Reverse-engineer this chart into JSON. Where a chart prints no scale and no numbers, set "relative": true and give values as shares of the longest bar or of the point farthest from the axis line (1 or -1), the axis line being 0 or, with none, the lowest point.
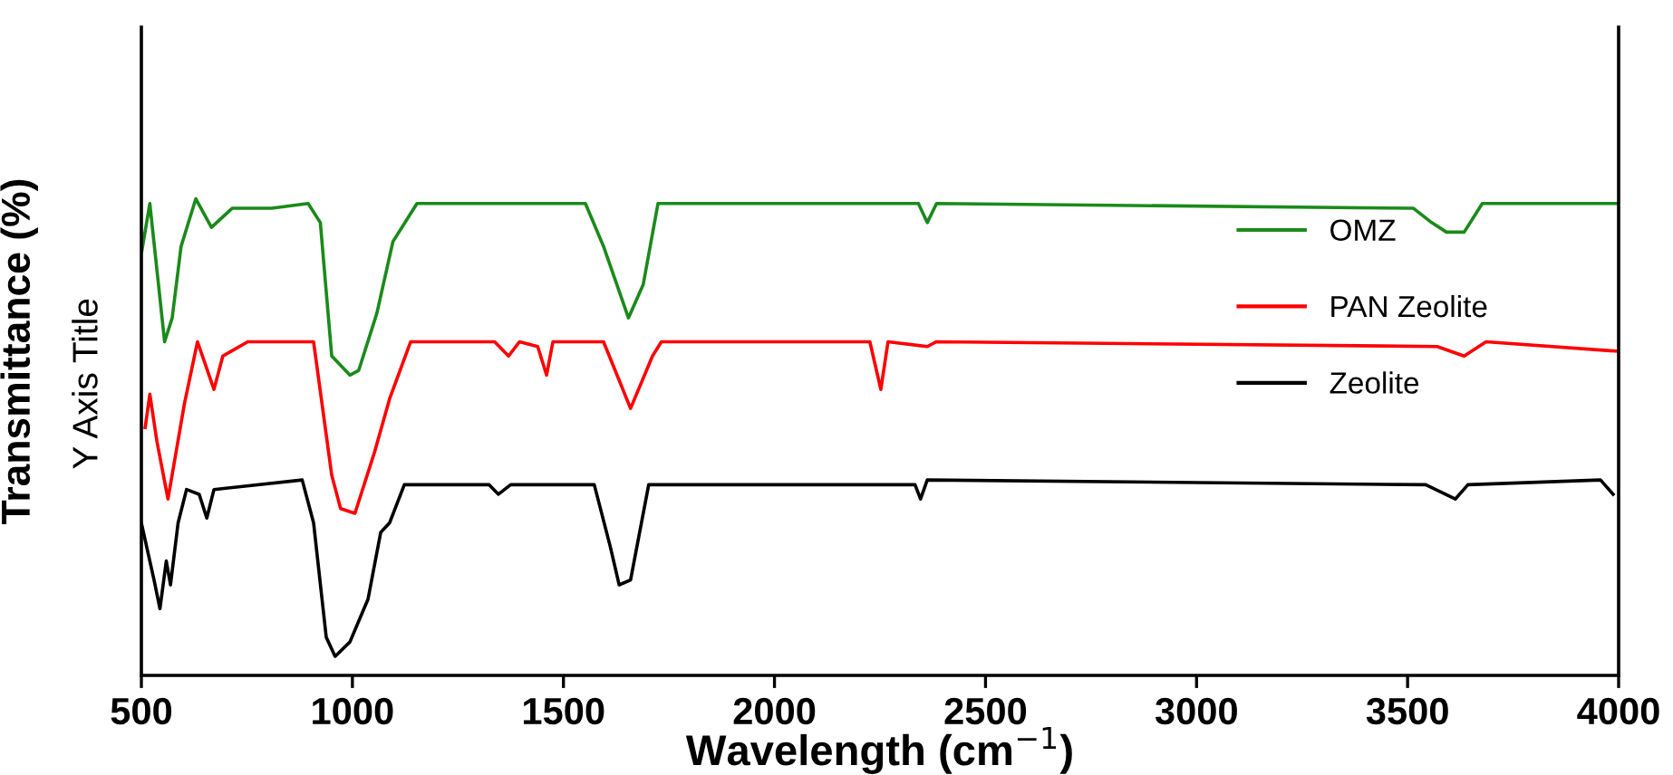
{
  "chart_data": {
    "type": "line",
    "relative": true,
    "xlabel": "Wavelength (cm$^{−1}$)",
    "ylabel": "Transmittance (%)",
    "annotations": [
      "Y Axis Title"
    ],
    "xlim": [
      500,
      4000
    ],
    "xticks": [
      500,
      1000,
      1500,
      2000,
      2500,
      3000,
      3500,
      4000
    ],
    "legend": "right",
    "grid": false,
    "series": [
      {
        "name": "OMZ",
        "color": "#1a8a1a",
        "x": [
          501,
          520,
          555,
          573,
          594,
          629,
          666,
          715,
          809,
          895,
          924,
          951,
          994,
          1015,
          1058,
          1096,
          1153,
          1552,
          1595,
          1654,
          1689,
          1724,
          2341,
          2362,
          2384,
          3514,
          3557,
          3592,
          3634,
          3677,
          4000
        ],
        "values": [
          0.89,
          0.99,
          0.7,
          0.75,
          0.9,
          1.0,
          0.94,
          0.98,
          0.98,
          0.99,
          0.95,
          0.67,
          0.63,
          0.64,
          0.76,
          0.91,
          0.99,
          0.99,
          0.9,
          0.75,
          0.82,
          0.99,
          0.99,
          0.95,
          0.99,
          0.98,
          0.95,
          0.93,
          0.93,
          0.99,
          0.99
        ]
      },
      {
        "name": "PAN Zeolite",
        "color": "#ff0000",
        "x": [
          509,
          520,
          537,
          563,
          602,
          633,
          672,
          693,
          752,
          908,
          951,
          972,
          1006,
          1053,
          1088,
          1138,
          1337,
          1370,
          1396,
          1439,
          1460,
          1475,
          1595,
          1659,
          1711,
          1732,
          2226,
          2252,
          2269,
          2362,
          2384,
          3570,
          3634,
          3686,
          4000
        ],
        "values": [
          0.52,
          0.59,
          0.49,
          0.37,
          0.57,
          0.7,
          0.6,
          0.67,
          0.7,
          0.7,
          0.42,
          0.35,
          0.34,
          0.47,
          0.58,
          0.7,
          0.7,
          0.67,
          0.7,
          0.69,
          0.63,
          0.7,
          0.7,
          0.56,
          0.67,
          0.7,
          0.7,
          0.6,
          0.7,
          0.69,
          0.7,
          0.69,
          0.67,
          0.7,
          0.68
        ]
      },
      {
        "name": "Zeolite",
        "color": "#000000",
        "x": [
          500,
          530,
          544,
          559,
          569,
          587,
          607,
          637,
          655,
          672,
          881,
          908,
          938,
          959,
          994,
          1037,
          1067,
          1088,
          1123,
          1324,
          1346,
          1375,
          1573,
          1611,
          1632,
          1659,
          1702,
          2333,
          2346,
          2362,
          3543,
          3613,
          3643,
          3957,
          3987
        ],
        "values": [
          0.32,
          0.2,
          0.14,
          0.24,
          0.19,
          0.32,
          0.39,
          0.38,
          0.33,
          0.39,
          0.41,
          0.32,
          0.08,
          0.04,
          0.07,
          0.16,
          0.3,
          0.32,
          0.4,
          0.4,
          0.38,
          0.4,
          0.4,
          0.27,
          0.19,
          0.2,
          0.4,
          0.4,
          0.37,
          0.41,
          0.4,
          0.37,
          0.4,
          0.41,
          0.38
        ]
      }
    ]
  }
}
